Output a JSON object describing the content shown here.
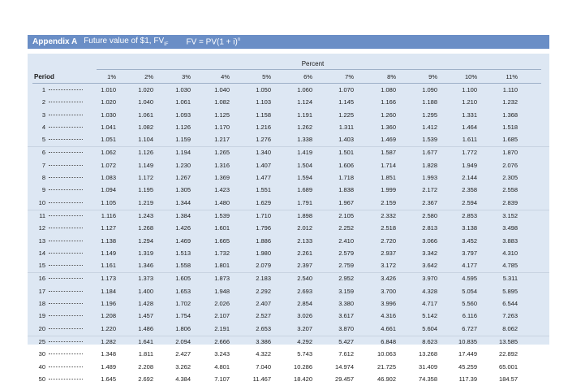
{
  "header": {
    "appendix": "Appendix A",
    "title": "Future value of $1, FV",
    "title_sub": "IF",
    "formula": "FV = PV(1 + i)",
    "formula_sup": "n"
  },
  "table": {
    "percent_caption": "Percent",
    "period_header": "Period",
    "rate_headers": [
      "1%",
      "2%",
      "3%",
      "4%",
      "5%",
      "6%",
      "7%",
      "8%",
      "9%",
      "10%",
      "11%"
    ],
    "rows": [
      {
        "period": "1",
        "values": [
          "1.010",
          "1.020",
          "1.030",
          "1.040",
          "1.050",
          "1.060",
          "1.070",
          "1.080",
          "1.090",
          "1.100",
          "1.110"
        ]
      },
      {
        "period": "2",
        "values": [
          "1.020",
          "1.040",
          "1.061",
          "1.082",
          "1.103",
          "1.124",
          "1.145",
          "1.166",
          "1.188",
          "1.210",
          "1.232"
        ]
      },
      {
        "period": "3",
        "values": [
          "1.030",
          "1.061",
          "1.093",
          "1.125",
          "1.158",
          "1.191",
          "1.225",
          "1.260",
          "1.295",
          "1.331",
          "1.368"
        ]
      },
      {
        "period": "4",
        "values": [
          "1.041",
          "1.082",
          "1.126",
          "1.170",
          "1.216",
          "1.262",
          "1.311",
          "1.360",
          "1.412",
          "1.464",
          "1.518"
        ]
      },
      {
        "period": "5",
        "values": [
          "1.051",
          "1.104",
          "1.159",
          "1.217",
          "1.276",
          "1.338",
          "1.403",
          "1.469",
          "1.539",
          "1.611",
          "1.685"
        ]
      },
      {
        "period": "6",
        "values": [
          "1.062",
          "1.126",
          "1.194",
          "1.265",
          "1.340",
          "1.419",
          "1.501",
          "1.587",
          "1.677",
          "1.772",
          "1.870"
        ]
      },
      {
        "period": "7",
        "values": [
          "1.072",
          "1.149",
          "1.230",
          "1.316",
          "1.407",
          "1.504",
          "1.606",
          "1.714",
          "1.828",
          "1.949",
          "2.076"
        ]
      },
      {
        "period": "8",
        "values": [
          "1.083",
          "1.172",
          "1.267",
          "1.369",
          "1.477",
          "1.594",
          "1.718",
          "1.851",
          "1.993",
          "2.144",
          "2.305"
        ]
      },
      {
        "period": "9",
        "values": [
          "1.094",
          "1.195",
          "1.305",
          "1.423",
          "1.551",
          "1.689",
          "1.838",
          "1.999",
          "2.172",
          "2.358",
          "2.558"
        ]
      },
      {
        "period": "10",
        "values": [
          "1.105",
          "1.219",
          "1.344",
          "1.480",
          "1.629",
          "1.791",
          "1.967",
          "2.159",
          "2.367",
          "2.594",
          "2.839"
        ]
      },
      {
        "period": "11",
        "values": [
          "1.116",
          "1.243",
          "1.384",
          "1.539",
          "1.710",
          "1.898",
          "2.105",
          "2.332",
          "2.580",
          "2.853",
          "3.152"
        ]
      },
      {
        "period": "12",
        "values": [
          "1.127",
          "1.268",
          "1.426",
          "1.601",
          "1.796",
          "2.012",
          "2.252",
          "2.518",
          "2.813",
          "3.138",
          "3.498"
        ]
      },
      {
        "period": "13",
        "values": [
          "1.138",
          "1.294",
          "1.469",
          "1.665",
          "1.886",
          "2.133",
          "2.410",
          "2.720",
          "3.066",
          "3.452",
          "3.883"
        ]
      },
      {
        "period": "14",
        "values": [
          "1.149",
          "1.319",
          "1.513",
          "1.732",
          "1.980",
          "2.261",
          "2.579",
          "2.937",
          "3.342",
          "3.797",
          "4.310"
        ]
      },
      {
        "period": "15",
        "values": [
          "1.161",
          "1.346",
          "1.558",
          "1.801",
          "2.079",
          "2.397",
          "2.759",
          "3.172",
          "3.642",
          "4.177",
          "4.785"
        ]
      },
      {
        "period": "16",
        "values": [
          "1.173",
          "1.373",
          "1.605",
          "1.873",
          "2.183",
          "2.540",
          "2.952",
          "3.426",
          "3.970",
          "4.595",
          "5.311"
        ]
      },
      {
        "period": "17",
        "values": [
          "1.184",
          "1.400",
          "1.653",
          "1.948",
          "2.292",
          "2.693",
          "3.159",
          "3.700",
          "4.328",
          "5.054",
          "5.895"
        ]
      },
      {
        "period": "18",
        "values": [
          "1.196",
          "1.428",
          "1.702",
          "2.026",
          "2.407",
          "2.854",
          "3.380",
          "3.996",
          "4.717",
          "5.560",
          "6.544"
        ]
      },
      {
        "period": "19",
        "values": [
          "1.208",
          "1.457",
          "1.754",
          "2.107",
          "2.527",
          "3.026",
          "3.617",
          "4.316",
          "5.142",
          "6.116",
          "7.263"
        ]
      },
      {
        "period": "20",
        "values": [
          "1.220",
          "1.486",
          "1.806",
          "2.191",
          "2.653",
          "3.207",
          "3.870",
          "4.661",
          "5.604",
          "6.727",
          "8.062"
        ]
      },
      {
        "period": "25",
        "values": [
          "1.282",
          "1.641",
          "2.094",
          "2.666",
          "3.386",
          "4.292",
          "5.427",
          "6.848",
          "8.623",
          "10.835",
          "13.585"
        ]
      },
      {
        "period": "30",
        "values": [
          "1.348",
          "1.811",
          "2.427",
          "3.243",
          "4.322",
          "5.743",
          "7.612",
          "10.063",
          "13.268",
          "17.449",
          "22.892"
        ]
      },
      {
        "period": "40",
        "values": [
          "1.489",
          "2.208",
          "3.262",
          "4.801",
          "7.040",
          "10.286",
          "14.974",
          "21.725",
          "31.409",
          "45.259",
          "65.001"
        ]
      },
      {
        "period": "50",
        "values": [
          "1.645",
          "2.692",
          "4.384",
          "7.107",
          "11.467",
          "18.420",
          "29.457",
          "46.902",
          "74.358",
          "117.39",
          "184.57"
        ]
      }
    ]
  }
}
